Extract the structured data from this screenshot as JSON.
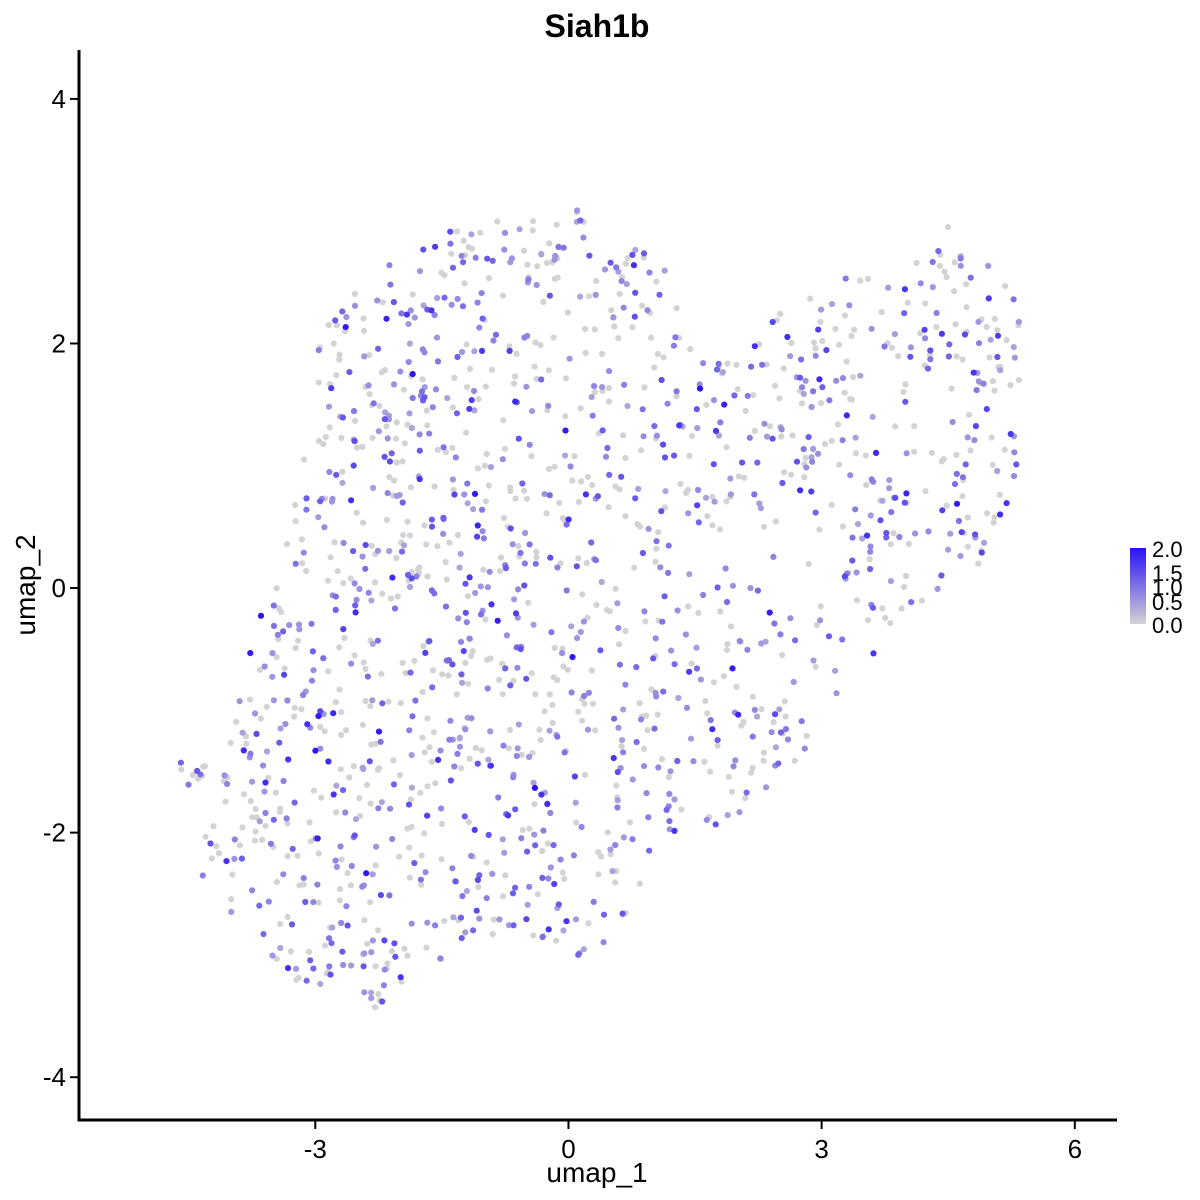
{
  "chart_data": {
    "type": "scatter",
    "title": "Siah1b",
    "xlabel": "umap_1",
    "ylabel": "umap_2",
    "xlim": [
      -5.8,
      6.5
    ],
    "ylim": [
      -4.35,
      4.4
    ],
    "x_ticks": [
      -3,
      0,
      3,
      6
    ],
    "y_ticks": [
      -4,
      -2,
      0,
      2,
      4
    ],
    "x_tick_labels": [
      "-3",
      "0",
      "3",
      "6"
    ],
    "y_tick_labels": [
      "-4",
      "-2",
      "0",
      "2",
      "4"
    ],
    "grid": false,
    "legend": {
      "placement": "right",
      "type": "colorbar",
      "labels": [
        "2.0",
        "1.5",
        "1.0",
        "0.5",
        "0.0"
      ],
      "range": [
        0,
        2.0
      ],
      "low_color": "#d3d3d3",
      "high_color": "#2a12f5"
    },
    "point_count": 1600,
    "points_note_expression_scale": "color encodes expression value from 0.0 (grey) to 2.0 (blue)"
  }
}
